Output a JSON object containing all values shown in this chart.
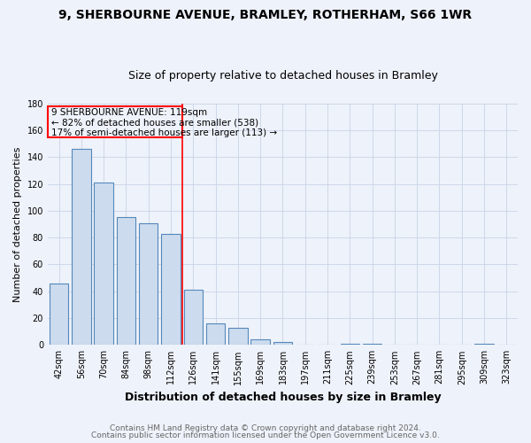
{
  "title1": "9, SHERBOURNE AVENUE, BRAMLEY, ROTHERHAM, S66 1WR",
  "title2": "Size of property relative to detached houses in Bramley",
  "xlabel": "Distribution of detached houses by size in Bramley",
  "ylabel": "Number of detached properties",
  "categories": [
    "42sqm",
    "56sqm",
    "70sqm",
    "84sqm",
    "98sqm",
    "112sqm",
    "126sqm",
    "141sqm",
    "155sqm",
    "169sqm",
    "183sqm",
    "197sqm",
    "211sqm",
    "225sqm",
    "239sqm",
    "253sqm",
    "267sqm",
    "281sqm",
    "295sqm",
    "309sqm",
    "323sqm"
  ],
  "values": [
    46,
    146,
    121,
    95,
    91,
    83,
    41,
    16,
    13,
    4,
    2,
    0,
    0,
    1,
    1,
    0,
    0,
    0,
    0,
    1,
    0
  ],
  "bar_color": "#ccdcee",
  "bar_edge_color": "#5588bb",
  "grid_color": "#c8d4e8",
  "background_color": "#eef2fa",
  "red_line_index": 6,
  "annotation_text1": "9 SHERBOURNE AVENUE: 119sqm",
  "annotation_text2": "← 82% of detached houses are smaller (538)",
  "annotation_text3": "17% of semi-detached houses are larger (113) →",
  "footer1": "Contains HM Land Registry data © Crown copyright and database right 2024.",
  "footer2": "Contains public sector information licensed under the Open Government Licence v3.0.",
  "ylim": [
    0,
    180
  ],
  "title1_fontsize": 10,
  "title2_fontsize": 9,
  "xlabel_fontsize": 9,
  "ylabel_fontsize": 8,
  "tick_fontsize": 7,
  "annotation_fontsize": 7.5,
  "footer_fontsize": 6.5
}
